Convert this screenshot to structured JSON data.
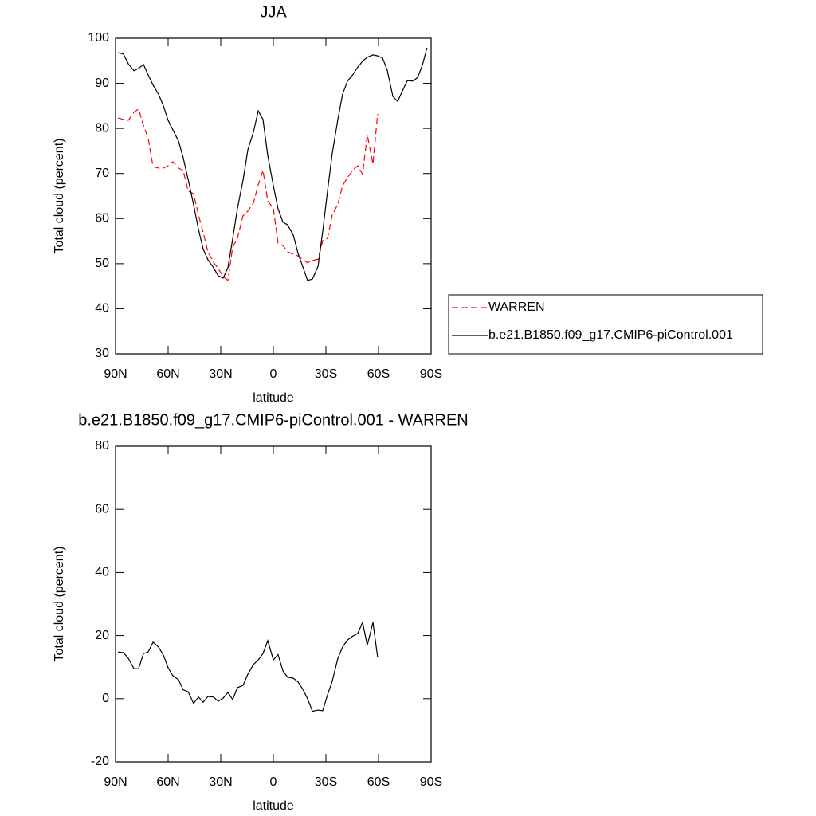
{
  "chart_data": [
    {
      "type": "line",
      "title": "JJA",
      "xlabel": "latitude",
      "ylabel": "Total cloud (percent)",
      "x": [
        88.6,
        85.5,
        82.7,
        79.5,
        76.8,
        74.1,
        71.4,
        68.6,
        65.5,
        62.7,
        60,
        57.3,
        54.1,
        51.4,
        48.6,
        45.5,
        42.7,
        40,
        37.3,
        34.1,
        31.4,
        28.6,
        25.9,
        23.2,
        20.5,
        17.3,
        14.5,
        11.4,
        8.6,
        5.9,
        3.2,
        0,
        -2.7,
        -5.5,
        -8.2,
        -11.4,
        -14.1,
        -16.8,
        -19.5,
        -22.3,
        -25.5,
        -28.2,
        -30.9,
        -33.6,
        -36.8,
        -39.5,
        -42.3,
        -45.5,
        -48.2,
        -50.9,
        -53.6,
        -56.8,
        -59.5,
        -62.3,
        -65,
        -68.2,
        -70.9,
        -73.6,
        -76.4,
        -79.5,
        -82.3,
        -85,
        -87.7
      ],
      "series": [
        {
          "name": "WARREN",
          "color": "#ff0000",
          "dashed": true,
          "values": [
            82.3,
            82.0,
            81.8,
            83.6,
            84.3,
            80.6,
            77.9,
            71.5,
            71.2,
            71.2,
            71.7,
            72.6,
            71.2,
            70.7,
            66.1,
            65.5,
            60.8,
            56.9,
            52.6,
            50.3,
            48.9,
            47.1,
            46.3,
            53.7,
            55.6,
            60.6,
            61.7,
            63.4,
            67.5,
            70.7,
            63.9,
            62.3,
            54.6,
            54.0,
            52.6,
            52.1,
            51.7,
            50.9,
            50.2,
            50.7,
            51.0,
            55.1,
            55.6,
            60.8,
            63.2,
            67.3,
            69.1,
            70.8,
            71.7,
            69.8,
            78.6,
            72.1,
            83.2,
            null,
            null,
            null,
            null,
            null,
            null,
            null,
            null,
            null,
            null
          ]
        },
        {
          "name": "b.e21.B1850.f09_g17.CMIP6-piControl.001",
          "color": "#000000",
          "dashed": false,
          "values": [
            96.8,
            96.5,
            94.3,
            92.8,
            93.3,
            94.2,
            91.9,
            89.6,
            87.6,
            85.0,
            81.8,
            79.7,
            77.2,
            73.5,
            68.7,
            63.1,
            57.6,
            53.2,
            50.9,
            49.1,
            47.3,
            46.8,
            49.1,
            55.5,
            62.2,
            68.4,
            75.3,
            79.1,
            83.9,
            82.0,
            74.0,
            67.3,
            62.2,
            59.2,
            58.6,
            56.3,
            52.3,
            49.3,
            46.3,
            46.6,
            49.4,
            57.2,
            66.1,
            74.4,
            82.0,
            87.6,
            90.5,
            92.0,
            93.6,
            94.9,
            95.8,
            96.3,
            96.1,
            95.6,
            92.9,
            87.1,
            86.0,
            88.3,
            90.6,
            90.5,
            91.3,
            94.0,
            97.9
          ]
        }
      ],
      "xlim": [
        90,
        -90
      ],
      "xticks": [
        {
          "value": 90,
          "label": "90N"
        },
        {
          "value": 60,
          "label": "60N"
        },
        {
          "value": 30,
          "label": "30N"
        },
        0,
        {
          "value": -30,
          "label": "30S"
        },
        {
          "value": -60,
          "label": "60S"
        },
        {
          "value": -90,
          "label": "90S"
        }
      ],
      "ylim": [
        30,
        100
      ],
      "yticks": [
        30,
        40,
        50,
        60,
        70,
        80,
        90,
        100
      ],
      "legend": "right"
    },
    {
      "type": "line",
      "title": "b.e21.B1850.f09_g17.CMIP6-piControl.001 - WARREN",
      "xlabel": "latitude",
      "ylabel": "Total cloud (percent)",
      "x": [
        88.6,
        85.5,
        82.7,
        79.5,
        76.8,
        74.1,
        71.4,
        68.6,
        65.5,
        62.7,
        60,
        57.3,
        54.1,
        51.4,
        48.6,
        45.5,
        42.7,
        40,
        37.3,
        34.1,
        31.4,
        28.6,
        25.9,
        23.2,
        20.5,
        17.3,
        14.5,
        11.4,
        8.6,
        5.9,
        3.2,
        0,
        -2.7,
        -5.5,
        -8.2,
        -11.4,
        -14.1,
        -16.8,
        -19.5,
        -22.3,
        -25.5,
        -28.2,
        -30.9,
        -33.6,
        -36.8,
        -39.5,
        -42.3,
        -45.5,
        -48.2,
        -50.9,
        -53.6,
        -56.8,
        -59.5
      ],
      "series": [
        {
          "color": "#000000",
          "dashed": false,
          "values": [
            14.8,
            14.6,
            12.8,
            9.5,
            9.5,
            14.3,
            14.8,
            17.9,
            16.4,
            13.8,
            9.8,
            7.3,
            6.0,
            2.8,
            2.2,
            -1.5,
            0.5,
            -1.1,
            0.7,
            0.5,
            -0.8,
            0.2,
            2.0,
            -0.3,
            3.5,
            4.2,
            7.8,
            10.8,
            12.3,
            14.3,
            18.4,
            12.3,
            14.0,
            8.8,
            6.8,
            6.5,
            5.3,
            3.0,
            0,
            -4.0,
            -3.6,
            -3.8,
            1.2,
            5.5,
            12.8,
            16.4,
            18.6,
            19.9,
            20.7,
            24.2,
            16.9,
            24.2,
            13.1
          ]
        }
      ],
      "xlim": [
        90,
        -90
      ],
      "xticks": [
        {
          "value": 90,
          "label": "90N"
        },
        {
          "value": 60,
          "label": "60N"
        },
        {
          "value": 30,
          "label": "30N"
        },
        0,
        {
          "value": -30,
          "label": "30S"
        },
        {
          "value": -60,
          "label": "60S"
        },
        {
          "value": -90,
          "label": "90S"
        }
      ],
      "ylim": [
        -20,
        80
      ],
      "yticks": [
        -20,
        0,
        20,
        40,
        60,
        80
      ]
    }
  ]
}
